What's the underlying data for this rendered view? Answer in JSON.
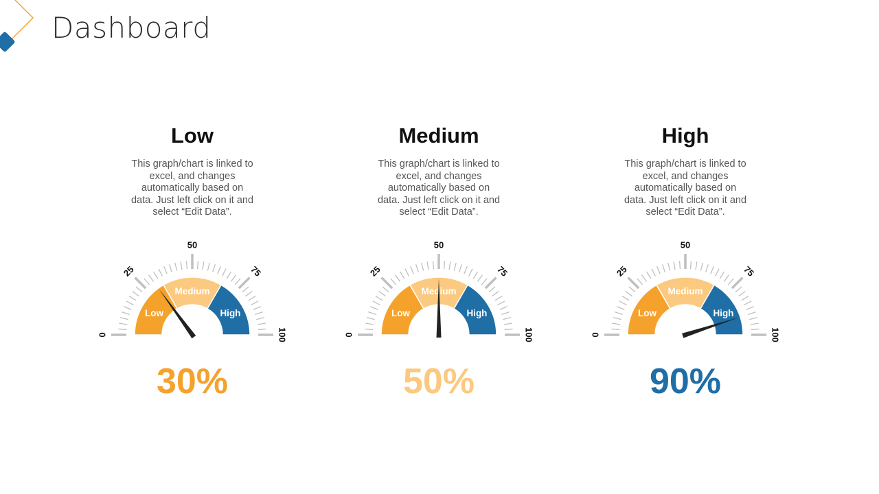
{
  "page": {
    "title": "Dashboard"
  },
  "colors": {
    "low": "#F5A22D",
    "medium": "#FBC97F",
    "high": "#1F6EA6",
    "needle": "#222222",
    "ticks": "#BFBFBF",
    "logo_orange": "#F0A83A",
    "logo_blue": "#1F6EA6"
  },
  "chart_data": [
    {
      "type": "gauge",
      "title": "Low",
      "description": "This graph/chart is linked to excel, and changes automatically based on data. Just left click on it and select “Edit Data”.",
      "value": 30,
      "value_label": "30%",
      "value_color": "#F5A22D",
      "range": [
        0,
        100
      ],
      "tick_labels": [
        "0",
        "25",
        "50",
        "75",
        "100"
      ],
      "bands": [
        {
          "label": "Low",
          "from": 0,
          "to": 33.3,
          "color": "#F5A22D"
        },
        {
          "label": "Medium",
          "from": 33.3,
          "to": 66.7,
          "color": "#FBC97F"
        },
        {
          "label": "High",
          "from": 66.7,
          "to": 100,
          "color": "#1F6EA6"
        }
      ]
    },
    {
      "type": "gauge",
      "title": "Medium",
      "description": "This graph/chart is linked to excel, and changes automatically based on data. Just left click on it and select “Edit Data”.",
      "value": 50,
      "value_label": "50%",
      "value_color": "#FBC97F",
      "range": [
        0,
        100
      ],
      "tick_labels": [
        "0",
        "25",
        "50",
        "75",
        "100"
      ],
      "bands": [
        {
          "label": "Low",
          "from": 0,
          "to": 33.3,
          "color": "#F5A22D"
        },
        {
          "label": "Medium",
          "from": 33.3,
          "to": 66.7,
          "color": "#FBC97F"
        },
        {
          "label": "High",
          "from": 66.7,
          "to": 100,
          "color": "#1F6EA6"
        }
      ]
    },
    {
      "type": "gauge",
      "title": "High",
      "description": "This graph/chart is linked to excel, and changes automatically based on data. Just left click on it and select “Edit Data”.",
      "value": 90,
      "value_label": "90%",
      "value_color": "#1F6EA6",
      "range": [
        0,
        100
      ],
      "tick_labels": [
        "0",
        "25",
        "50",
        "75",
        "100"
      ],
      "bands": [
        {
          "label": "Low",
          "from": 0,
          "to": 33.3,
          "color": "#F5A22D"
        },
        {
          "label": "Medium",
          "from": 33.3,
          "to": 66.7,
          "color": "#FBC97F"
        },
        {
          "label": "High",
          "from": 66.7,
          "to": 100,
          "color": "#1F6EA6"
        }
      ]
    }
  ]
}
